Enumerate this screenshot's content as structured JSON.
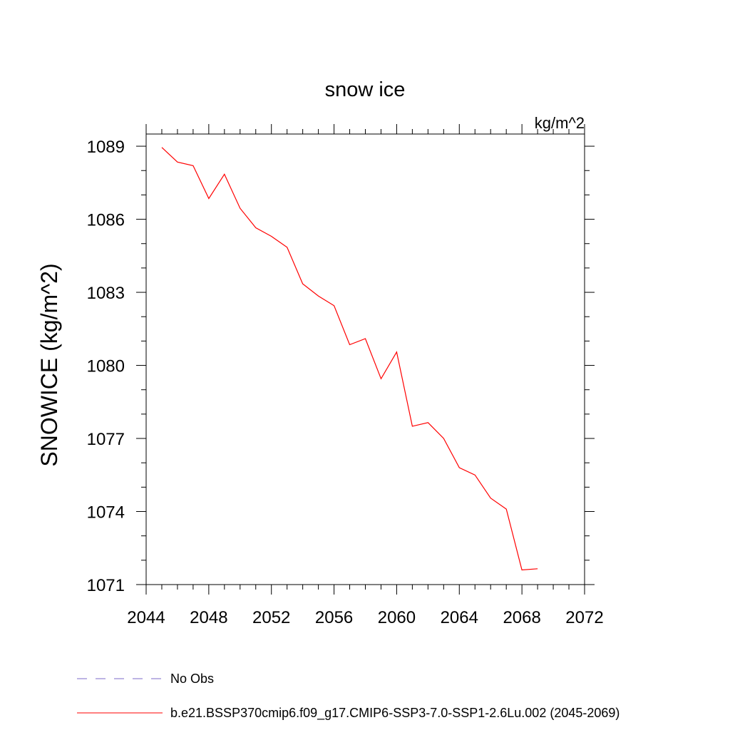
{
  "chart_data": {
    "type": "line",
    "title": "snow ice",
    "units_label": "kg/m^2",
    "xlabel": "",
    "ylabel": "SNOWICE  (kg/m^2)",
    "xlim": [
      2044,
      2072
    ],
    "ylim": [
      1071,
      1089.5
    ],
    "x_ticks": [
      "2044",
      "2048",
      "2052",
      "2056",
      "2060",
      "2064",
      "2068",
      "2072"
    ],
    "y_ticks": [
      "1071",
      "1074",
      "1077",
      "1080",
      "1083",
      "1086",
      "1089"
    ],
    "grid": false,
    "legend_position": "bottom",
    "series": [
      {
        "name": "No Obs",
        "color": "#7b68c8",
        "style": "dashed",
        "x": [],
        "y": []
      },
      {
        "name": "b.e21.BSSP370cmip6.f09_g17.CMIP6-SSP3-7.0-SSP1-2.6Lu.002 (2045-2069)",
        "color": "#ff0000",
        "style": "solid",
        "x": [
          2045,
          2046,
          2047,
          2048,
          2049,
          2050,
          2051,
          2052,
          2053,
          2054,
          2055,
          2056,
          2057,
          2058,
          2059,
          2060,
          2061,
          2062,
          2063,
          2064,
          2065,
          2066,
          2067,
          2068,
          2069
        ],
        "y": [
          1088.95,
          1088.35,
          1088.2,
          1086.85,
          1087.85,
          1086.45,
          1085.65,
          1085.3,
          1084.85,
          1083.35,
          1082.85,
          1082.45,
          1080.85,
          1081.1,
          1079.45,
          1080.55,
          1077.5,
          1077.65,
          1077.0,
          1075.8,
          1075.5,
          1074.55,
          1074.1,
          1071.6,
          1071.65
        ]
      }
    ]
  }
}
